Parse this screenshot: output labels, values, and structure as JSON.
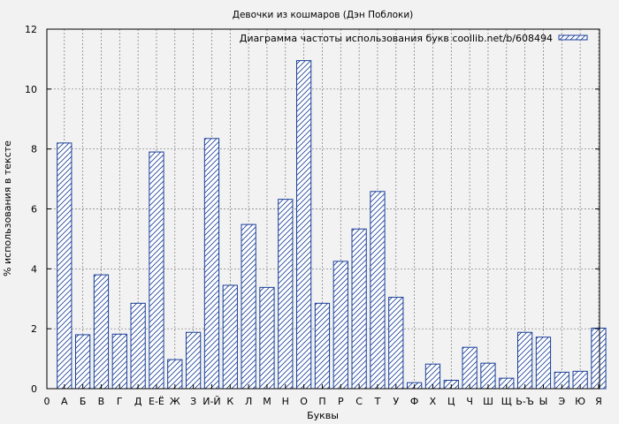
{
  "chart_data": {
    "type": "bar",
    "title": "Девочки из кошмаров (Дэн Поблоки)",
    "xlabel": "Буквы",
    "ylabel": "% использования в тексте",
    "legend_label": "Диаграмма частоты использования букв coollib.net/b/608494",
    "legend_position": "top-right",
    "grid": true,
    "ylim": [
      0,
      12
    ],
    "yticks": [
      "0",
      "2",
      "4",
      "6",
      "8",
      "10",
      "12"
    ],
    "x_origin_label": "0",
    "categories": [
      "А",
      "Б",
      "В",
      "Г",
      "Д",
      "Е-Ё",
      "Ж",
      "З",
      "И-Й",
      "К",
      "Л",
      "М",
      "Н",
      "О",
      "П",
      "Р",
      "С",
      "Т",
      "У",
      "Ф",
      "Х",
      "Ц",
      "Ч",
      "Ш",
      "Щ",
      "Ь-Ъ",
      "Ы",
      "Э",
      "Ю",
      "Я"
    ],
    "values": [
      8.2,
      1.8,
      3.8,
      1.82,
      2.85,
      7.9,
      0.97,
      1.88,
      8.35,
      3.45,
      5.48,
      3.38,
      6.32,
      10.95,
      2.85,
      4.25,
      5.33,
      6.58,
      3.05,
      0.2,
      0.82,
      0.28,
      1.38,
      0.85,
      0.35,
      1.88,
      1.72,
      0.55,
      0.58,
      2.02
    ],
    "colors": {
      "bar_stroke": "#1a3f99",
      "hatch": "#1a3f99",
      "bar_fill": "#ffffff",
      "background": "#f2f2f2",
      "grid": "#777777"
    }
  }
}
